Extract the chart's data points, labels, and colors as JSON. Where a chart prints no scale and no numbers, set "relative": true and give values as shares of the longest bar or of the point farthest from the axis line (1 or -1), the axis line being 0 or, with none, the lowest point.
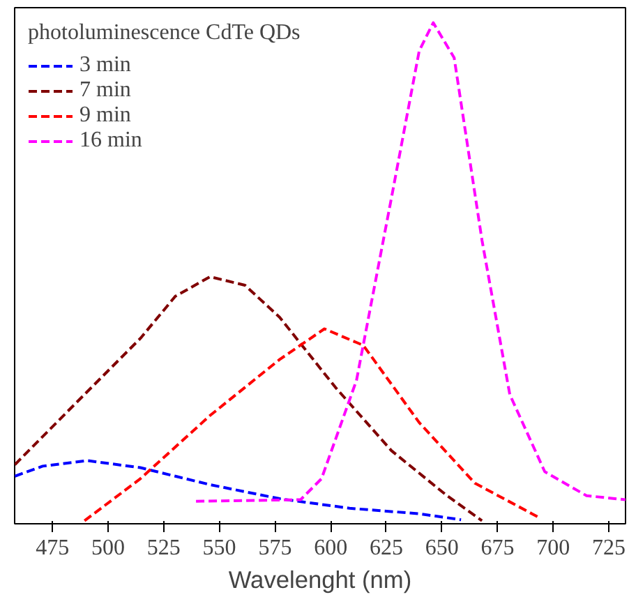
{
  "chart_data": {
    "type": "line",
    "relative": true,
    "xlabel": "Wavelenght (nm)",
    "legend_title": "photoluminescence CdTe QDs",
    "legend": "top left",
    "grid": false,
    "line_style": "dashed",
    "marker": "none",
    "tick_labels": "x",
    "xlim": [
      458,
      732.5
    ],
    "xticks": [
      475,
      500,
      525,
      550,
      575,
      600,
      625,
      650,
      675,
      700,
      725
    ],
    "series": [
      {
        "name": "3 min",
        "color": "#0000ff",
        "x": [
          458.1,
          470.6,
          490.7,
          514.5,
          545.8,
          577.1,
          608.5,
          639.8,
          658.6
        ],
        "values": [
          0.095,
          0.115,
          0.126,
          0.112,
          0.078,
          0.05,
          0.031,
          0.02,
          0.008
        ]
      },
      {
        "name": "7 min",
        "color": "#800000",
        "x": [
          458.1,
          483.1,
          514.5,
          530.2,
          545.8,
          561.5,
          577.1,
          602.2,
          627.3,
          652.3,
          668
        ],
        "values": [
          0.118,
          0.23,
          0.37,
          0.454,
          0.493,
          0.476,
          0.412,
          0.272,
          0.146,
          0.056,
          0.006
        ]
      },
      {
        "name": "9 min",
        "color": "#ff0000",
        "x": [
          489.4,
          514.5,
          545.8,
          577.1,
          597.2,
          614.7,
          639.8,
          664.8,
          693
        ],
        "values": [
          0.006,
          0.09,
          0.216,
          0.328,
          0.389,
          0.356,
          0.202,
          0.081,
          0.014
        ]
      },
      {
        "name": "16 min",
        "color": "#ff00ff",
        "x": [
          539.5,
          586.5,
          595.9,
          611.6,
          627.3,
          639.8,
          646.1,
          655.5,
          668,
          680.5,
          696.2,
          715,
          732.5
        ],
        "values": [
          0.045,
          0.048,
          0.09,
          0.286,
          0.65,
          0.944,
          1.0,
          0.93,
          0.566,
          0.258,
          0.104,
          0.056,
          0.048
        ]
      }
    ]
  }
}
